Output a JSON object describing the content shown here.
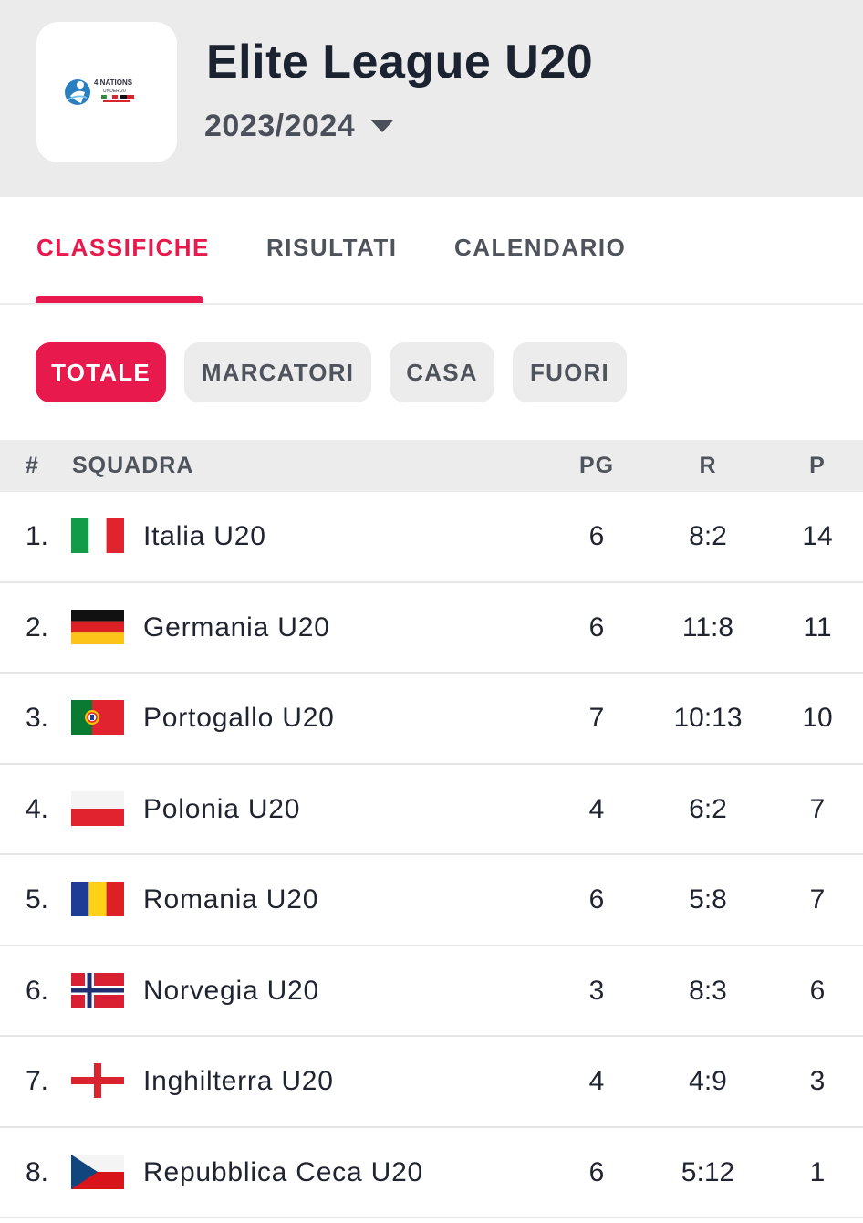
{
  "header": {
    "logo_text": "4 NATIONS UNDER 20",
    "title": "Elite League U20",
    "season": "2023/2024"
  },
  "tabs": [
    {
      "label": "CLASSIFICHE",
      "active": true
    },
    {
      "label": "RISULTATI",
      "active": false
    },
    {
      "label": "CALENDARIO",
      "active": false
    }
  ],
  "chips": [
    {
      "label": "TOTALE",
      "active": true
    },
    {
      "label": "MARCATORI",
      "active": false
    },
    {
      "label": "CASA",
      "active": false
    },
    {
      "label": "FUORI",
      "active": false
    }
  ],
  "table": {
    "columns": {
      "rank": "#",
      "team": "SQUADRA",
      "pg": "PG",
      "r": "R",
      "p": "P"
    },
    "rows": [
      {
        "rank": "1.",
        "flag": "italy-flag",
        "team": "Italia U20",
        "pg": "6",
        "r": "8:2",
        "p": "14"
      },
      {
        "rank": "2.",
        "flag": "germany-flag",
        "team": "Germania U20",
        "pg": "6",
        "r": "11:8",
        "p": "11"
      },
      {
        "rank": "3.",
        "flag": "portugal-flag",
        "team": "Portogallo U20",
        "pg": "7",
        "r": "10:13",
        "p": "10"
      },
      {
        "rank": "4.",
        "flag": "poland-flag",
        "team": "Polonia U20",
        "pg": "4",
        "r": "6:2",
        "p": "7"
      },
      {
        "rank": "5.",
        "flag": "romania-flag",
        "team": "Romania U20",
        "pg": "6",
        "r": "5:8",
        "p": "7"
      },
      {
        "rank": "6.",
        "flag": "norway-flag",
        "team": "Norvegia U20",
        "pg": "3",
        "r": "8:3",
        "p": "6"
      },
      {
        "rank": "7.",
        "flag": "england-flag",
        "team": "Inghilterra U20",
        "pg": "4",
        "r": "4:9",
        "p": "3"
      },
      {
        "rank": "8.",
        "flag": "czech-flag",
        "team": "Repubblica Ceca U20",
        "pg": "6",
        "r": "5:12",
        "p": "1"
      }
    ]
  },
  "colors": {
    "accent": "#e8194d",
    "header_bg": "#ebebeb",
    "chip_bg": "#ececec",
    "text": "#1f2430"
  }
}
